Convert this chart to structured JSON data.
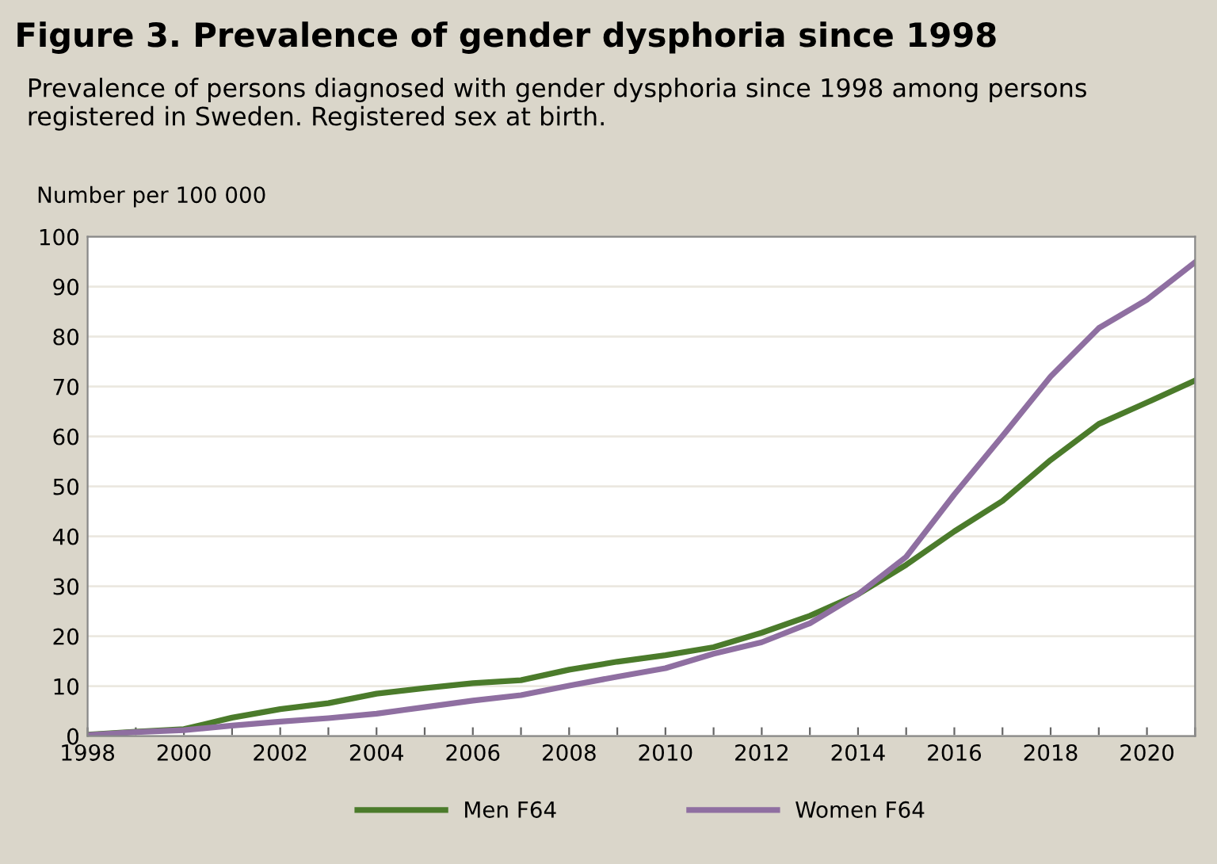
{
  "chart_data": {
    "type": "line",
    "title": "Figure 3. Prevalence of gender dysphoria since 1998",
    "subtitle": "Prevalence of persons diagnosed with gender dysphoria since 1998 among persons registered in Sweden. Registered sex at birth.",
    "ylabel": "Number per 100 000",
    "x": [
      1998,
      1999,
      2000,
      2001,
      2002,
      2003,
      2004,
      2005,
      2006,
      2007,
      2008,
      2009,
      2010,
      2011,
      2012,
      2013,
      2014,
      2015,
      2016,
      2017,
      2018,
      2019,
      2020,
      2021
    ],
    "series": [
      {
        "name": "Men F64",
        "color": "#4b7b2b",
        "values": [
          0.3,
          0.9,
          1.4,
          3.7,
          5.4,
          6.6,
          8.5,
          9.6,
          10.6,
          11.2,
          13.3,
          14.9,
          16.2,
          17.8,
          20.7,
          24.1,
          28.4,
          34.3,
          41.0,
          47.1,
          55.3,
          62.5,
          66.8,
          71.2
        ]
      },
      {
        "name": "Women F64",
        "color": "#8f6fa1",
        "values": [
          0.2,
          0.8,
          1.2,
          2.1,
          2.9,
          3.6,
          4.5,
          5.8,
          7.1,
          8.2,
          10.1,
          11.9,
          13.6,
          16.5,
          18.8,
          22.6,
          28.4,
          35.9,
          48.4,
          60.1,
          72.0,
          81.7,
          87.4,
          94.9
        ]
      }
    ],
    "xlim": [
      1998,
      2021
    ],
    "xticks": [
      1998,
      {
        "value": 1999,
        "label": null
      },
      2000,
      {
        "value": 2001,
        "label": null
      },
      2002,
      {
        "value": 2003,
        "label": null
      },
      2004,
      {
        "value": 2005,
        "label": null
      },
      2006,
      {
        "value": 2007,
        "label": null
      },
      2008,
      {
        "value": 2009,
        "label": null
      },
      2010,
      {
        "value": 2011,
        "label": null
      },
      2012,
      {
        "value": 2013,
        "label": null
      },
      2014,
      {
        "value": 2015,
        "label": null
      },
      2016,
      {
        "value": 2017,
        "label": null
      },
      2018,
      {
        "value": 2019,
        "label": null
      },
      2020,
      {
        "value": 2021,
        "label": null
      }
    ],
    "ylim": [
      0,
      100
    ],
    "yticks": [
      0,
      10,
      20,
      30,
      40,
      50,
      60,
      70,
      80,
      90,
      100
    ],
    "grid": "y",
    "legend": "bottom",
    "marker": "none",
    "line_style": "solid"
  }
}
